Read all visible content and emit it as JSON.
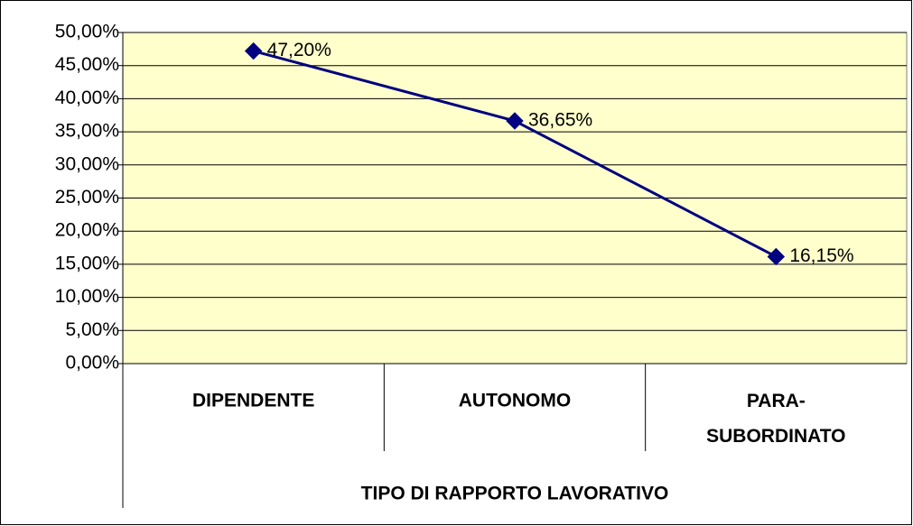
{
  "chart_data": {
    "type": "line",
    "x_label": "TIPO DI RAPPORTO LAVORATIVO",
    "categories": [
      "DIPENDENTE",
      "AUTONOMO",
      "PARA-SUBORDINATO"
    ],
    "series": [
      {
        "color": "#000080",
        "values": [
          47.2,
          36.65,
          16.15
        ],
        "value_labels": [
          "47,20%",
          "36,65%",
          "16,15%"
        ]
      }
    ],
    "ylim": [
      0,
      50
    ],
    "yticks": [
      {
        "value": 0,
        "label": "0,00%"
      },
      {
        "value": 5,
        "label": "5,00%"
      },
      {
        "value": 10,
        "label": "10,00%"
      },
      {
        "value": 15,
        "label": "15,00%"
      },
      {
        "value": 20,
        "label": "20,00%"
      },
      {
        "value": 25,
        "label": "25,00%"
      },
      {
        "value": 30,
        "label": "30,00%"
      },
      {
        "value": 35,
        "label": "35,00%"
      },
      {
        "value": 40,
        "label": "40,00%"
      },
      {
        "value": 45,
        "label": "45,00%"
      },
      {
        "value": 50,
        "label": "50,00%"
      }
    ],
    "grid": true,
    "plot_background": "#ffffcc"
  }
}
